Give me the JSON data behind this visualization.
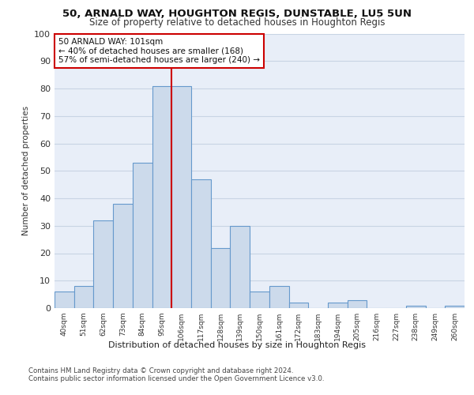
{
  "title1": "50, ARNALD WAY, HOUGHTON REGIS, DUNSTABLE, LU5 5UN",
  "title2": "Size of property relative to detached houses in Houghton Regis",
  "xlabel": "Distribution of detached houses by size in Houghton Regis",
  "ylabel": "Number of detached properties",
  "categories": [
    "40sqm",
    "51sqm",
    "62sqm",
    "73sqm",
    "84sqm",
    "95sqm",
    "106sqm",
    "117sqm",
    "128sqm",
    "139sqm",
    "150sqm",
    "161sqm",
    "172sqm",
    "183sqm",
    "194sqm",
    "205sqm",
    "216sqm",
    "227sqm",
    "238sqm",
    "249sqm",
    "260sqm"
  ],
  "values": [
    6,
    8,
    32,
    38,
    53,
    81,
    81,
    47,
    22,
    30,
    6,
    8,
    2,
    0,
    2,
    3,
    0,
    0,
    1,
    0,
    1
  ],
  "bar_color": "#ccdaeb",
  "bar_edge_color": "#6699cc",
  "vline_x_idx": 5,
  "vline_color": "#cc0000",
  "annotation_text": "50 ARNALD WAY: 101sqm\n← 40% of detached houses are smaller (168)\n57% of semi-detached houses are larger (240) →",
  "annotation_box_color": "#ffffff",
  "annotation_box_edge": "#cc0000",
  "ylim": [
    0,
    100
  ],
  "yticks": [
    0,
    10,
    20,
    30,
    40,
    50,
    60,
    70,
    80,
    90,
    100
  ],
  "grid_color": "#c8d4e4",
  "background_color": "#e8eef8",
  "footnote1": "Contains HM Land Registry data © Crown copyright and database right 2024.",
  "footnote2": "Contains public sector information licensed under the Open Government Licence v3.0."
}
